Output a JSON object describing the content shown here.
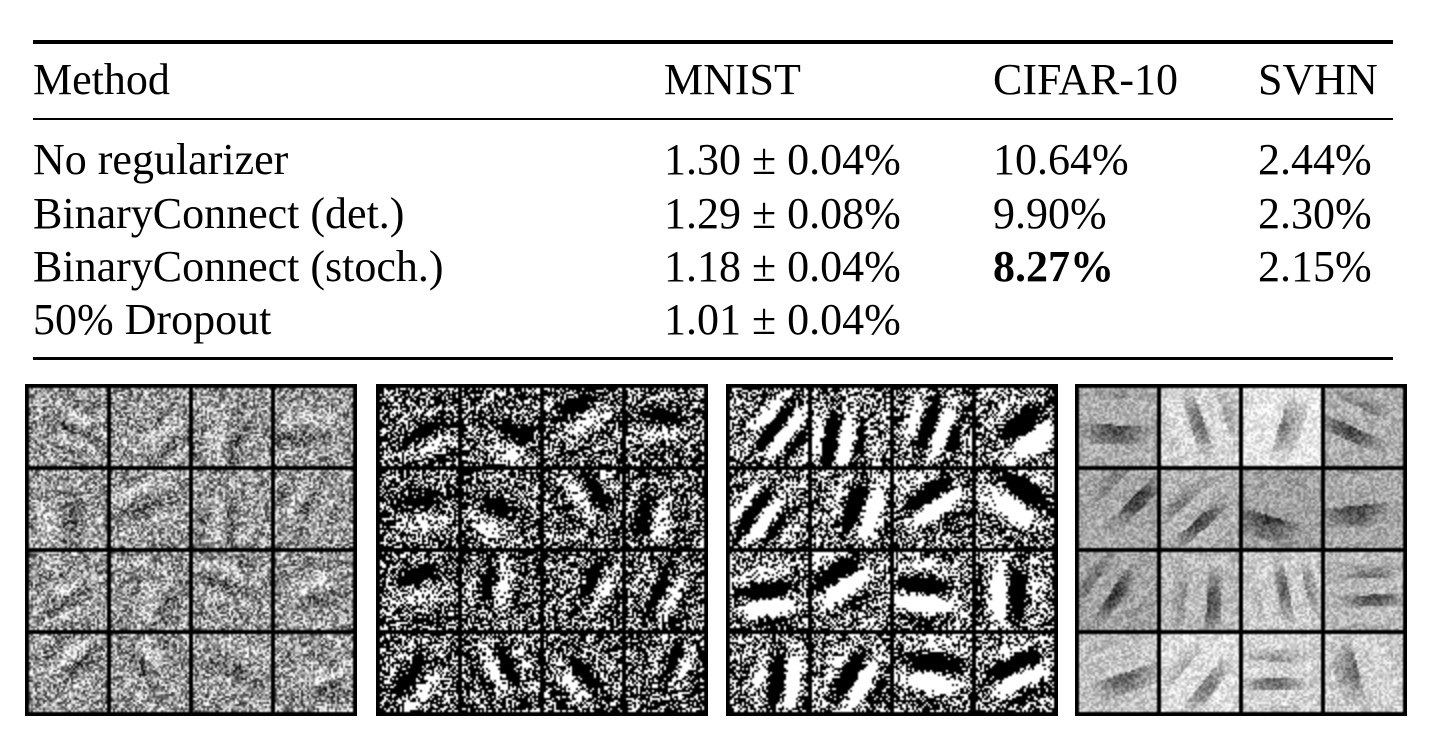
{
  "table": {
    "headers": [
      "Method",
      "MNIST",
      "CIFAR-10",
      "SVHN"
    ],
    "rows": [
      [
        "No regularizer",
        "1.30 ± 0.04%",
        "10.64%",
        "2.44%"
      ],
      [
        "BinaryConnect (det.)",
        "1.29 ± 0.08%",
        "9.90%",
        "2.30%"
      ],
      [
        "BinaryConnect (stoch.)",
        "1.18 ± 0.04%",
        "8.27%",
        "2.15%"
      ],
      [
        "50% Dropout",
        "1.01 ± 0.04%",
        "",
        ""
      ]
    ],
    "bold_cell": {
      "row": 2,
      "col": 2
    }
  },
  "figure": {
    "panels": [
      {
        "grid": "4x4",
        "style": "gray-noise"
      },
      {
        "grid": "4x4",
        "style": "binary-noise"
      },
      {
        "grid": "4x4",
        "style": "binary-strokes"
      },
      {
        "grid": "4x4",
        "style": "gray-smooth"
      }
    ]
  }
}
